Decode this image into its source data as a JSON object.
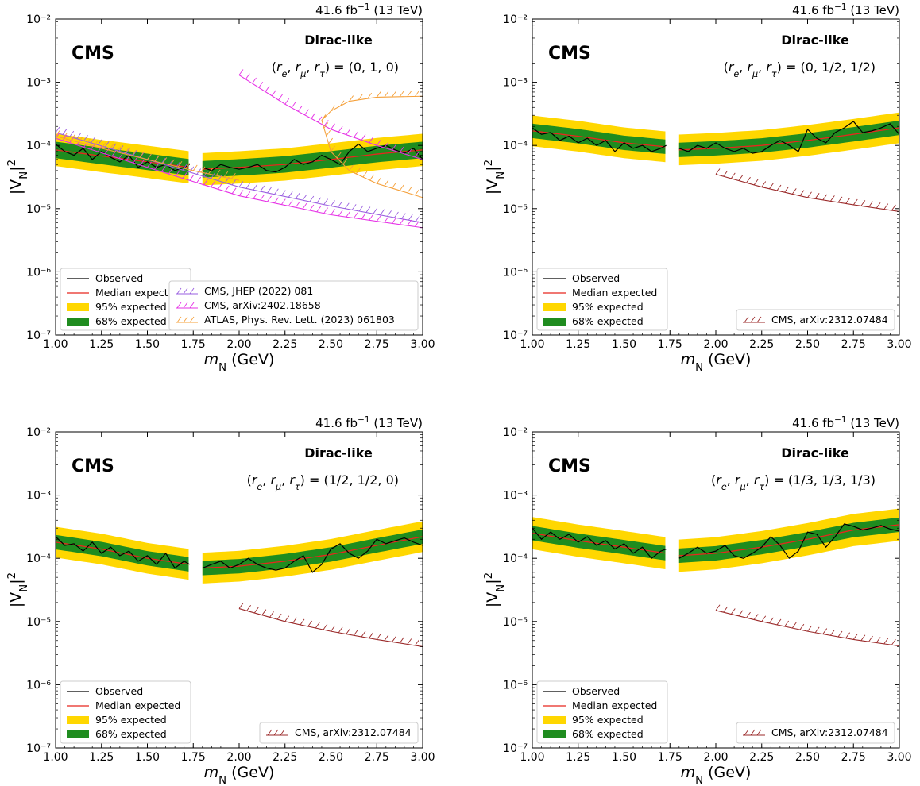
{
  "common": {
    "lumi_label": "41.6 fb⁻¹ (13 TeV)",
    "cms_label": "CMS",
    "model_label": "Dirac-like",
    "xlabel": "m_N (GeV)",
    "ylabel": "|V_N|²",
    "xlim": [
      1.0,
      3.0
    ],
    "ylim": [
      1e-07,
      0.01
    ],
    "xticks": [
      "1.00",
      "1.25",
      "1.50",
      "1.75",
      "2.00",
      "2.25",
      "2.50",
      "2.75",
      "3.00"
    ],
    "yticks": [
      "10⁻⁷",
      "10⁻⁶",
      "10⁻⁵",
      "10⁻⁴",
      "10⁻³",
      "10⁻²"
    ],
    "legend_main": [
      "Observed",
      "Median expected",
      "95% expected",
      "68% expected"
    ],
    "colors": {
      "observed": "#000000",
      "median": "#e8261e",
      "band95": "#ffd700",
      "band68": "#1f8c1f",
      "cms_jhep": "#9a5fe0",
      "cms_arxiv_2402": "#e632e6",
      "atlas": "#f5a03a",
      "cms_arxiv_2312": "#9b2a2a"
    }
  },
  "chart_data": [
    {
      "type": "line",
      "couplings": "(r_e, r_μ, r_τ) = (0, 1, 0)",
      "yscale": "log",
      "median": {
        "x": [
          1.0,
          1.25,
          1.5,
          1.73,
          1.8,
          2.0,
          2.25,
          2.5,
          2.75,
          3.0
        ],
        "y": [
          8.5e-05,
          6.8e-05,
          5.5e-05,
          4.5e-05,
          4.2e-05,
          4.5e-05,
          5e-05,
          6e-05,
          7.3e-05,
          8.5e-05
        ]
      },
      "observed": {
        "x": [
          1.0,
          1.05,
          1.1,
          1.15,
          1.2,
          1.25,
          1.3,
          1.35,
          1.4,
          1.45,
          1.5,
          1.55,
          1.6,
          1.65,
          1.7,
          1.73,
          1.8,
          1.85,
          1.9,
          1.95,
          2.0,
          2.05,
          2.1,
          2.15,
          2.2,
          2.25,
          2.3,
          2.35,
          2.4,
          2.45,
          2.5,
          2.55,
          2.6,
          2.65,
          2.7,
          2.75,
          2.8,
          2.85,
          2.9,
          2.95,
          3.0
        ],
        "y": [
          0.000105,
          8e-05,
          7e-05,
          9e-05,
          6e-05,
          8e-05,
          6.5e-05,
          5.5e-05,
          7e-05,
          4.5e-05,
          5.5e-05,
          4.5e-05,
          5e-05,
          4e-05,
          4.5e-05,
          5e-05,
          4.5e-05,
          4e-05,
          5e-05,
          4.5e-05,
          4.2e-05,
          4.5e-05,
          5e-05,
          4e-05,
          3.8e-05,
          4.5e-05,
          6e-05,
          5e-05,
          5.5e-05,
          7e-05,
          6e-05,
          5e-05,
          8e-05,
          0.000105,
          8e-05,
          9e-05,
          0.0001,
          8.5e-05,
          7.5e-05,
          9e-05,
          6e-05
        ]
      },
      "band68_halfwidth_factor": 1.35,
      "band95_halfwidth_factor": 1.8,
      "references": [
        {
          "label": "CMS, JHEP (2022) 081",
          "color_key": "cms_jhep",
          "x": [
            1.0,
            1.5,
            2.0,
            2.5,
            3.0
          ],
          "y": [
            0.00016,
            6e-05,
            2.2e-05,
            1.1e-05,
            6e-06
          ]
        },
        {
          "label": "CMS, arXiv:2402.18658",
          "color_key": "cms_arxiv_2402",
          "x": [
            1.0,
            1.5,
            2.0,
            2.5,
            3.0
          ],
          "y": [
            0.00013,
            4.5e-05,
            1.6e-05,
            8e-06,
            5e-06
          ]
        },
        {
          "label": "CMS, arXiv:2402.18658",
          "color_key": "cms_arxiv_2402",
          "x": [
            2.0,
            2.25,
            2.5,
            2.75,
            3.0
          ],
          "y": [
            0.0013,
            0.00045,
            0.00018,
            0.0001,
            6e-05
          ],
          "hide_in_legend": true
        },
        {
          "label": "ATLAS, Phys. Rev. Lett. (2023) 061803",
          "color_key": "atlas",
          "x": [
            2.45,
            2.5,
            2.6,
            2.75,
            3.0
          ],
          "y": [
            0.00025,
            0.00035,
            0.0005,
            0.00058,
            0.0006
          ]
        },
        {
          "label": "ATLAS, Phys. Rev. Lett. (2023) 061803",
          "color_key": "atlas",
          "x": [
            2.45,
            2.5,
            2.6,
            2.75,
            3.0
          ],
          "y": [
            0.00025,
            8e-05,
            4e-05,
            2.5e-05,
            1.5e-05
          ],
          "hide_in_legend": true
        },
        {
          "label": "ATLAS, Phys. Rev. Lett. (2023) 061803",
          "color_key": "atlas",
          "x": [
            1.0,
            1.25,
            1.5,
            1.75,
            2.0
          ],
          "y": [
            0.00014,
            9e-05,
            6e-05,
            4e-05,
            2.8e-05
          ],
          "hide_in_legend": true
        }
      ]
    },
    {
      "type": "line",
      "couplings": "(r_e, r_μ, r_τ) = (0, 1/2, 1/2)",
      "yscale": "log",
      "median": {
        "x": [
          1.0,
          1.25,
          1.5,
          1.73,
          1.8,
          2.0,
          2.25,
          2.5,
          2.75,
          3.0
        ],
        "y": [
          0.00017,
          0.00014,
          0.00011,
          9.5e-05,
          8.5e-05,
          9e-05,
          0.0001,
          0.00012,
          0.00015,
          0.00019
        ]
      },
      "observed": {
        "x": [
          1.0,
          1.05,
          1.1,
          1.15,
          1.2,
          1.25,
          1.3,
          1.35,
          1.4,
          1.45,
          1.5,
          1.55,
          1.6,
          1.65,
          1.7,
          1.73,
          1.8,
          1.85,
          1.9,
          1.95,
          2.0,
          2.05,
          2.1,
          2.15,
          2.2,
          2.25,
          2.3,
          2.35,
          2.4,
          2.45,
          2.5,
          2.55,
          2.6,
          2.65,
          2.7,
          2.75,
          2.8,
          2.85,
          2.9,
          2.95,
          3.0
        ],
        "y": [
          0.00019,
          0.00015,
          0.00016,
          0.00012,
          0.00014,
          0.00011,
          0.00013,
          0.0001,
          0.00012,
          8e-05,
          0.00011,
          9e-05,
          0.0001,
          8e-05,
          9e-05,
          0.0001,
          9e-05,
          8e-05,
          0.0001,
          9e-05,
          0.00011,
          9e-05,
          8e-05,
          9e-05,
          7.5e-05,
          8e-05,
          0.0001,
          0.00012,
          0.0001,
          8e-05,
          0.00018,
          0.00013,
          0.00011,
          0.00016,
          0.00019,
          0.00024,
          0.00016,
          0.00017,
          0.00019,
          0.00022,
          0.00015
        ]
      },
      "band68_halfwidth_factor": 1.3,
      "band95_halfwidth_factor": 1.75,
      "references": [
        {
          "label": "CMS, arXiv:2312.07484",
          "color_key": "cms_arxiv_2312",
          "x": [
            2.0,
            2.25,
            2.5,
            2.75,
            3.0
          ],
          "y": [
            3.5e-05,
            2.2e-05,
            1.5e-05,
            1.15e-05,
            9e-06
          ]
        }
      ]
    },
    {
      "type": "line",
      "couplings": "(r_e, r_μ, r_τ) = (1/2, 1/2, 0)",
      "yscale": "log",
      "median": {
        "x": [
          1.0,
          1.25,
          1.5,
          1.73,
          1.8,
          2.0,
          2.25,
          2.5,
          2.75,
          3.0
        ],
        "y": [
          0.00018,
          0.00014,
          0.0001,
          8e-05,
          7e-05,
          7.5e-05,
          9e-05,
          0.000115,
          0.00016,
          0.00022
        ]
      },
      "observed": {
        "x": [
          1.0,
          1.05,
          1.1,
          1.15,
          1.2,
          1.25,
          1.3,
          1.35,
          1.4,
          1.45,
          1.5,
          1.55,
          1.6,
          1.65,
          1.7,
          1.73,
          1.8,
          1.85,
          1.9,
          1.95,
          2.0,
          2.05,
          2.1,
          2.15,
          2.2,
          2.25,
          2.3,
          2.35,
          2.4,
          2.45,
          2.5,
          2.55,
          2.6,
          2.65,
          2.7,
          2.75,
          2.8,
          2.85,
          2.9,
          2.95,
          3.0
        ],
        "y": [
          0.00022,
          0.00016,
          0.00017,
          0.00013,
          0.00018,
          0.00012,
          0.00015,
          0.00011,
          0.00013,
          9e-05,
          0.00011,
          8e-05,
          0.00012,
          7e-05,
          9e-05,
          8e-05,
          7e-05,
          8e-05,
          9e-05,
          7e-05,
          8e-05,
          0.0001,
          8e-05,
          7e-05,
          6.5e-05,
          7e-05,
          9e-05,
          0.00011,
          6e-05,
          8e-05,
          0.00014,
          0.00017,
          0.00012,
          0.0001,
          0.00013,
          0.0002,
          0.00017,
          0.00019,
          0.00021,
          0.00018,
          0.00016
        ]
      },
      "band68_halfwidth_factor": 1.3,
      "band95_halfwidth_factor": 1.75,
      "references": [
        {
          "label": "CMS, arXiv:2312.07484",
          "color_key": "cms_arxiv_2312",
          "x": [
            2.0,
            2.25,
            2.5,
            2.75,
            3.0
          ],
          "y": [
            1.6e-05,
            1e-05,
            7e-06,
            5.2e-06,
            4e-06
          ]
        }
      ]
    },
    {
      "type": "line",
      "couplings": "(r_e, r_μ, r_τ) = (1/3, 1/3, 1/3)",
      "yscale": "log",
      "median": {
        "x": [
          1.0,
          1.25,
          1.5,
          1.73,
          1.8,
          2.0,
          2.25,
          2.5,
          2.75,
          3.0
        ],
        "y": [
          0.00025,
          0.00019,
          0.00015,
          0.00012,
          0.00011,
          0.00012,
          0.00015,
          0.0002,
          0.00028,
          0.00034
        ]
      },
      "observed": {
        "x": [
          1.0,
          1.05,
          1.1,
          1.15,
          1.2,
          1.25,
          1.3,
          1.35,
          1.4,
          1.45,
          1.5,
          1.55,
          1.6,
          1.65,
          1.7,
          1.73,
          1.8,
          1.85,
          1.9,
          1.95,
          2.0,
          2.05,
          2.1,
          2.15,
          2.2,
          2.25,
          2.3,
          2.35,
          2.4,
          2.45,
          2.5,
          2.55,
          2.6,
          2.65,
          2.7,
          2.75,
          2.8,
          2.85,
          2.9,
          2.95,
          3.0
        ],
        "y": [
          0.0003,
          0.0002,
          0.00026,
          0.0002,
          0.00024,
          0.00018,
          0.00022,
          0.00016,
          0.00019,
          0.00014,
          0.00017,
          0.00012,
          0.00015,
          0.0001,
          0.00013,
          0.00014,
          0.0001,
          0.00012,
          0.00015,
          0.00012,
          0.00013,
          0.00016,
          0.00011,
          0.0001,
          0.00012,
          0.00015,
          0.00022,
          0.00016,
          0.0001,
          0.00013,
          0.00026,
          0.00024,
          0.00015,
          0.00022,
          0.00035,
          0.00032,
          0.00028,
          0.0003,
          0.00033,
          0.00029,
          0.00027
        ]
      },
      "band68_halfwidth_factor": 1.3,
      "band95_halfwidth_factor": 1.8,
      "references": [
        {
          "label": "CMS, arXiv:2312.07484",
          "color_key": "cms_arxiv_2312",
          "x": [
            2.0,
            2.25,
            2.5,
            2.75,
            3.0
          ],
          "y": [
            1.5e-05,
            1e-05,
            7e-06,
            5.2e-06,
            4.1e-06
          ]
        }
      ]
    }
  ]
}
